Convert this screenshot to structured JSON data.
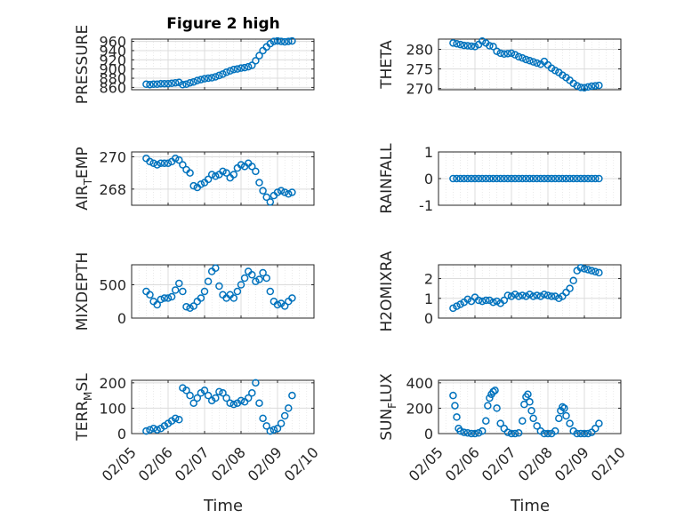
{
  "figure_title": "Figure 2 high",
  "colors": {
    "marker": "#0072bd",
    "axis": "#262626",
    "grid": "#dcdcdc"
  },
  "chart_data": [
    {
      "type": "scatter",
      "ylabel": "PRESSURE",
      "ylim": [
        855,
        965
      ],
      "yticks": [
        860,
        880,
        900,
        920,
        940,
        960
      ],
      "ytick_labels": [
        "860",
        "880",
        "900",
        "920",
        "940",
        "960"
      ],
      "grid": true,
      "x_range": [
        "02/05",
        "02/10"
      ],
      "marker": "open-circle",
      "x": [
        0.4,
        0.5,
        0.6,
        0.7,
        0.8,
        0.9,
        1.0,
        1.1,
        1.2,
        1.3,
        1.4,
        1.5,
        1.6,
        1.7,
        1.8,
        1.9,
        2.0,
        2.1,
        2.2,
        2.3,
        2.4,
        2.5,
        2.6,
        2.7,
        2.8,
        2.9,
        3.0,
        3.1,
        3.2,
        3.3,
        3.4,
        3.5,
        3.6,
        3.7,
        3.8,
        3.9,
        4.0,
        4.1,
        4.2,
        4.3,
        4.4
      ],
      "y": [
        867,
        866,
        867,
        867,
        868,
        868,
        868,
        869,
        870,
        871,
        866,
        867,
        870,
        872,
        875,
        877,
        879,
        880,
        881,
        883,
        886,
        889,
        893,
        896,
        899,
        900,
        902,
        903,
        905,
        908,
        918,
        929,
        940,
        948,
        955,
        960,
        961,
        960,
        959,
        960,
        961
      ]
    },
    {
      "type": "scatter",
      "ylabel": "THETA",
      "ylim": [
        269.7,
        282.6
      ],
      "yticks": [
        270,
        275,
        280
      ],
      "ytick_labels": [
        "270",
        "275",
        "280"
      ],
      "grid": true,
      "x_range": [
        "02/05",
        "02/10"
      ],
      "marker": "open-circle",
      "x": [
        0.4,
        0.5,
        0.6,
        0.7,
        0.8,
        0.9,
        1.0,
        1.1,
        1.2,
        1.3,
        1.4,
        1.5,
        1.6,
        1.7,
        1.8,
        1.9,
        2.0,
        2.1,
        2.2,
        2.3,
        2.4,
        2.5,
        2.6,
        2.7,
        2.8,
        2.9,
        3.0,
        3.1,
        3.2,
        3.3,
        3.4,
        3.5,
        3.6,
        3.7,
        3.8,
        3.9,
        4.0,
        4.1,
        4.2,
        4.3,
        4.4
      ],
      "y": [
        281.6,
        281.4,
        281.2,
        281.0,
        280.9,
        280.8,
        280.7,
        281.2,
        282.1,
        281.6,
        280.9,
        280.7,
        279.5,
        279.0,
        278.8,
        278.9,
        279.0,
        278.6,
        278.1,
        277.8,
        277.4,
        277.1,
        276.8,
        276.5,
        276.2,
        276.9,
        276.0,
        275.2,
        274.6,
        274.1,
        273.4,
        272.8,
        272.1,
        271.3,
        270.7,
        270.3,
        270.2,
        270.4,
        270.6,
        270.7,
        270.8
      ]
    },
    {
      "type": "scatter",
      "ylabel": "AIR_TEMP",
      "ylim": [
        267.0,
        270.3
      ],
      "yticks": [
        268,
        270
      ],
      "ytick_labels": [
        "268",
        "270"
      ],
      "grid": true,
      "x_range": [
        "02/05",
        "02/10"
      ],
      "marker": "open-circle",
      "x": [
        0.4,
        0.5,
        0.6,
        0.7,
        0.8,
        0.9,
        1.0,
        1.1,
        1.2,
        1.3,
        1.4,
        1.5,
        1.6,
        1.7,
        1.8,
        1.9,
        2.0,
        2.1,
        2.2,
        2.3,
        2.4,
        2.5,
        2.6,
        2.7,
        2.8,
        2.9,
        3.0,
        3.1,
        3.2,
        3.3,
        3.4,
        3.5,
        3.6,
        3.7,
        3.8,
        3.9,
        4.0,
        4.1,
        4.2,
        4.3,
        4.4
      ],
      "y": [
        269.9,
        269.7,
        269.6,
        269.5,
        269.6,
        269.6,
        269.6,
        269.7,
        269.9,
        269.8,
        269.5,
        269.2,
        269.0,
        268.2,
        268.1,
        268.3,
        268.4,
        268.6,
        268.9,
        268.8,
        268.9,
        269.1,
        269.0,
        268.7,
        268.9,
        269.3,
        269.5,
        269.4,
        269.6,
        269.4,
        269.1,
        268.4,
        267.9,
        267.5,
        267.2,
        267.6,
        267.8,
        267.9,
        267.8,
        267.7,
        267.8
      ]
    },
    {
      "type": "scatter",
      "ylabel": "RAINFALL",
      "ylim": [
        -1,
        1
      ],
      "yticks": [
        -1,
        0,
        1
      ],
      "ytick_labels": [
        "-1",
        "0",
        "1"
      ],
      "grid": true,
      "x_range": [
        "02/05",
        "02/10"
      ],
      "marker": "open-circle",
      "x": [
        0.4,
        0.5,
        0.6,
        0.7,
        0.8,
        0.9,
        1.0,
        1.1,
        1.2,
        1.3,
        1.4,
        1.5,
        1.6,
        1.7,
        1.8,
        1.9,
        2.0,
        2.1,
        2.2,
        2.3,
        2.4,
        2.5,
        2.6,
        2.7,
        2.8,
        2.9,
        3.0,
        3.1,
        3.2,
        3.3,
        3.4,
        3.5,
        3.6,
        3.7,
        3.8,
        3.9,
        4.0,
        4.1,
        4.2,
        4.3,
        4.4
      ],
      "y": [
        0,
        0,
        0,
        0,
        0,
        0,
        0,
        0,
        0,
        0,
        0,
        0,
        0,
        0,
        0,
        0,
        0,
        0,
        0,
        0,
        0,
        0,
        0,
        0,
        0,
        0,
        0,
        0,
        0,
        0,
        0,
        0,
        0,
        0,
        0,
        0,
        0,
        0,
        0,
        0,
        0
      ]
    },
    {
      "type": "scatter",
      "ylabel": "MIXDEPTH",
      "ylim": [
        0,
        800
      ],
      "yticks": [
        0,
        500
      ],
      "ytick_labels": [
        "0",
        "500"
      ],
      "grid": true,
      "x_range": [
        "02/05",
        "02/10"
      ],
      "marker": "open-circle",
      "x": [
        0.4,
        0.5,
        0.6,
        0.7,
        0.8,
        0.9,
        1.0,
        1.1,
        1.2,
        1.3,
        1.4,
        1.5,
        1.6,
        1.7,
        1.8,
        1.9,
        2.0,
        2.1,
        2.2,
        2.3,
        2.4,
        2.5,
        2.6,
        2.7,
        2.8,
        2.9,
        3.0,
        3.1,
        3.2,
        3.3,
        3.4,
        3.5,
        3.6,
        3.7,
        3.8,
        3.9,
        4.0,
        4.1,
        4.2,
        4.3,
        4.4
      ],
      "y": [
        400,
        350,
        250,
        200,
        280,
        300,
        300,
        320,
        420,
        520,
        400,
        170,
        150,
        180,
        250,
        300,
        400,
        550,
        700,
        750,
        480,
        350,
        300,
        350,
        300,
        400,
        500,
        600,
        700,
        650,
        550,
        580,
        680,
        600,
        400,
        250,
        200,
        220,
        180,
        250,
        300
      ]
    },
    {
      "type": "scatter",
      "ylabel": "H2OMIXRA",
      "ylim": [
        0,
        2.7
      ],
      "yticks": [
        0,
        1,
        2
      ],
      "ytick_labels": [
        "0",
        "1",
        "2"
      ],
      "grid": true,
      "x_range": [
        "02/05",
        "02/10"
      ],
      "marker": "open-circle",
      "x": [
        0.4,
        0.5,
        0.6,
        0.7,
        0.8,
        0.9,
        1.0,
        1.1,
        1.2,
        1.3,
        1.4,
        1.5,
        1.6,
        1.7,
        1.8,
        1.9,
        2.0,
        2.1,
        2.2,
        2.3,
        2.4,
        2.5,
        2.6,
        2.7,
        2.8,
        2.9,
        3.0,
        3.1,
        3.2,
        3.3,
        3.4,
        3.5,
        3.6,
        3.7,
        3.8,
        3.9,
        4.0,
        4.1,
        4.2,
        4.3,
        4.4
      ],
      "y": [
        0.5,
        0.6,
        0.7,
        0.8,
        0.95,
        0.85,
        1.05,
        0.9,
        0.85,
        0.9,
        0.9,
        0.8,
        0.85,
        0.75,
        0.9,
        1.15,
        1.1,
        1.2,
        1.1,
        1.15,
        1.1,
        1.2,
        1.1,
        1.15,
        1.1,
        1.2,
        1.15,
        1.1,
        1.1,
        1.0,
        1.1,
        1.3,
        1.5,
        1.9,
        2.4,
        2.55,
        2.5,
        2.45,
        2.4,
        2.35,
        2.3
      ]
    },
    {
      "type": "scatter",
      "ylabel": "TERR_MSL",
      "ylim": [
        0,
        210
      ],
      "yticks": [
        0,
        100,
        200
      ],
      "ytick_labels": [
        "0",
        "100",
        "200"
      ],
      "grid": true,
      "x_range": [
        "02/05",
        "02/10"
      ],
      "marker": "open-circle",
      "x": [
        0.4,
        0.5,
        0.6,
        0.7,
        0.8,
        0.9,
        1.0,
        1.1,
        1.2,
        1.3,
        1.4,
        1.5,
        1.6,
        1.7,
        1.8,
        1.9,
        2.0,
        2.1,
        2.2,
        2.3,
        2.4,
        2.5,
        2.6,
        2.7,
        2.8,
        2.9,
        3.0,
        3.1,
        3.2,
        3.3,
        3.4,
        3.5,
        3.6,
        3.7,
        3.8,
        3.9,
        4.0,
        4.1,
        4.2,
        4.3,
        4.4
      ],
      "y": [
        10,
        15,
        20,
        15,
        20,
        30,
        40,
        50,
        60,
        55,
        180,
        170,
        150,
        120,
        140,
        160,
        170,
        150,
        130,
        140,
        165,
        160,
        140,
        120,
        115,
        120,
        130,
        125,
        140,
        160,
        200,
        120,
        60,
        30,
        10,
        15,
        20,
        40,
        70,
        100,
        150
      ]
    },
    {
      "type": "scatter",
      "ylabel": "SUN_FLUX",
      "ylim": [
        0,
        420
      ],
      "yticks": [
        0,
        200,
        400
      ],
      "ytick_labels": [
        "0",
        "200",
        "400"
      ],
      "grid": true,
      "x_range": [
        "02/05",
        "02/10"
      ],
      "marker": "open-circle",
      "x": [
        0.4,
        0.45,
        0.5,
        0.55,
        0.6,
        0.7,
        0.8,
        0.9,
        1.0,
        1.1,
        1.2,
        1.3,
        1.35,
        1.4,
        1.45,
        1.5,
        1.55,
        1.6,
        1.7,
        1.8,
        1.9,
        2.0,
        2.1,
        2.2,
        2.3,
        2.35,
        2.4,
        2.45,
        2.5,
        2.55,
        2.6,
        2.7,
        2.8,
        2.9,
        3.0,
        3.1,
        3.2,
        3.3,
        3.35,
        3.4,
        3.45,
        3.5,
        3.6,
        3.7,
        3.8,
        3.9,
        4.0,
        4.1,
        4.2,
        4.3,
        4.4
      ],
      "y": [
        300,
        220,
        130,
        40,
        20,
        10,
        5,
        0,
        0,
        5,
        20,
        100,
        220,
        280,
        310,
        330,
        340,
        200,
        80,
        40,
        10,
        0,
        0,
        5,
        100,
        230,
        290,
        310,
        250,
        180,
        120,
        60,
        20,
        0,
        0,
        0,
        20,
        120,
        180,
        210,
        200,
        140,
        80,
        20,
        0,
        0,
        0,
        0,
        10,
        40,
        80
      ]
    }
  ],
  "x_ticks": [
    "02/05",
    "02/06",
    "02/07",
    "02/08",
    "02/09",
    "02/10"
  ],
  "xlabels": {
    "left": "Time",
    "right": "Time"
  }
}
